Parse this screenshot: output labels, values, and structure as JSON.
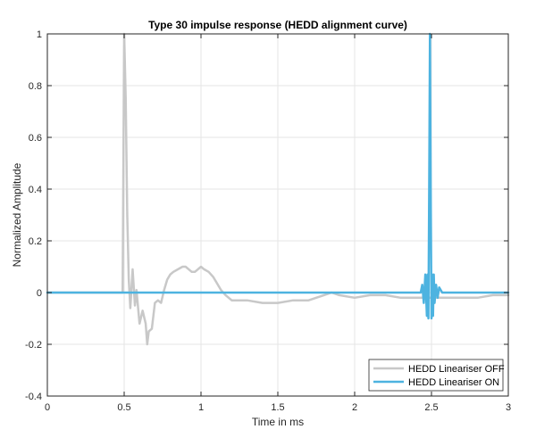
{
  "chart_data": {
    "type": "line",
    "title": "Type 30 impulse response (HEDD alignment curve)",
    "xlabel": "Time in ms",
    "ylabel": "Normalized Amplitude",
    "xlim": [
      0,
      3
    ],
    "ylim": [
      -0.4,
      1
    ],
    "xticks": [
      0,
      0.5,
      1,
      1.5,
      2,
      2.5,
      3
    ],
    "xtick_labels": [
      "0",
      "0.5",
      "1",
      "1.5",
      "2",
      "2.5",
      "3"
    ],
    "yticks": [
      -0.4,
      -0.2,
      0,
      0.2,
      0.4,
      0.6,
      0.8,
      1
    ],
    "ytick_labels": [
      "-0.4",
      "-0.2",
      "0",
      "0.2",
      "0.4",
      "0.6",
      "0.8",
      "1"
    ],
    "grid": true,
    "legend_position": "bottom-right",
    "series": [
      {
        "name": "HEDD Lineariser OFF",
        "color": "#c8c8c8",
        "x": [
          0,
          0.48,
          0.49,
          0.5,
          0.51,
          0.52,
          0.53,
          0.54,
          0.555,
          0.57,
          0.58,
          0.6,
          0.62,
          0.64,
          0.65,
          0.66,
          0.68,
          0.7,
          0.72,
          0.74,
          0.76,
          0.78,
          0.8,
          0.82,
          0.85,
          0.88,
          0.9,
          0.92,
          0.94,
          0.96,
          0.98,
          1.0,
          1.02,
          1.05,
          1.08,
          1.1,
          1.13,
          1.16,
          1.2,
          1.3,
          1.4,
          1.5,
          1.6,
          1.7,
          1.8,
          1.85,
          1.9,
          2.0,
          2.1,
          2.2,
          2.3,
          2.4,
          2.5,
          2.6,
          2.7,
          2.8,
          2.9,
          3.0
        ],
        "y": [
          0,
          0,
          0,
          1.0,
          0.75,
          0.3,
          0.05,
          -0.06,
          0.09,
          -0.05,
          0.01,
          -0.12,
          -0.07,
          -0.12,
          -0.2,
          -0.15,
          -0.14,
          -0.04,
          -0.03,
          -0.04,
          0.01,
          0.05,
          0.07,
          0.08,
          0.09,
          0.1,
          0.1,
          0.09,
          0.08,
          0.08,
          0.09,
          0.1,
          0.09,
          0.08,
          0.06,
          0.04,
          0.01,
          -0.01,
          -0.03,
          -0.03,
          -0.04,
          -0.04,
          -0.03,
          -0.03,
          -0.01,
          0.0,
          -0.01,
          -0.02,
          -0.01,
          -0.01,
          -0.02,
          -0.02,
          -0.02,
          -0.02,
          -0.02,
          -0.02,
          -0.01,
          -0.01
        ]
      },
      {
        "name": "HEDD Lineariser ON",
        "color": "#4db3e0",
        "x": [
          0,
          2.4,
          2.43,
          2.44,
          2.45,
          2.46,
          2.47,
          2.475,
          2.48,
          2.485,
          2.49,
          2.495,
          2.5,
          2.505,
          2.51,
          2.515,
          2.52,
          2.53,
          2.54,
          2.55,
          2.56,
          2.57,
          2.6,
          3.0
        ],
        "y": [
          0,
          0,
          0,
          0.03,
          -0.04,
          0.07,
          -0.09,
          0.07,
          -0.1,
          0.4,
          1.0,
          0.4,
          -0.1,
          0.07,
          -0.09,
          0.07,
          -0.04,
          0.03,
          -0.02,
          0.02,
          0.01,
          0,
          0,
          0
        ]
      }
    ]
  }
}
